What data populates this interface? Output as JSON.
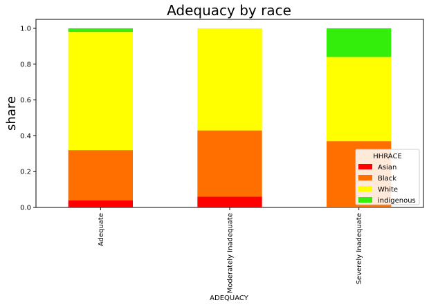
{
  "chart_data": {
    "type": "bar",
    "stacked": true,
    "title": "Adequacy by race",
    "xlabel": "ADEQUACY",
    "ylabel": "share",
    "categories": [
      "Adequate",
      "Moderately Inadequate",
      "Severely Inadequate"
    ],
    "series": [
      {
        "name": "Asian",
        "color": "#ff0000",
        "values": [
          0.04,
          0.06,
          0.0
        ]
      },
      {
        "name": "Black",
        "color": "#ff6f00",
        "values": [
          0.28,
          0.37,
          0.37
        ]
      },
      {
        "name": "White",
        "color": "#ffff00",
        "values": [
          0.66,
          0.57,
          0.47
        ]
      },
      {
        "name": "indigenous",
        "color": "#33ee0a",
        "values": [
          0.02,
          0.0,
          0.16
        ]
      }
    ],
    "ylim": [
      0,
      1.05
    ],
    "yticks": [
      "0.0",
      "0.2",
      "0.4",
      "0.6",
      "0.8",
      "1.0"
    ],
    "grid": false,
    "legend": {
      "title": "HHRACE",
      "placement": "lower-right"
    }
  }
}
